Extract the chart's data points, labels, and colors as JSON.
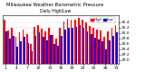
{
  "title": "Milwaukee Weather Barometric Pressure",
  "subtitle": "Daily High/Low",
  "ylim": [
    28.85,
    30.65
  ],
  "high_color": "#ff0000",
  "low_color": "#0000ee",
  "bg_color": "#ffffff",
  "days": [
    "1",
    "2",
    "3",
    "4",
    "5",
    "6",
    "7",
    "8",
    "9",
    "10",
    "11",
    "12",
    "13",
    "14",
    "15",
    "16",
    "17",
    "18",
    "19",
    "20",
    "21",
    "22",
    "23",
    "24",
    "25",
    "26",
    "27",
    "28",
    "29",
    "30",
    "31"
  ],
  "highs": [
    30.48,
    30.1,
    30.18,
    29.85,
    30.02,
    30.12,
    29.95,
    29.6,
    30.22,
    30.3,
    30.15,
    30.05,
    30.18,
    29.92,
    29.8,
    30.2,
    30.42,
    30.52,
    30.48,
    30.5,
    30.55,
    30.5,
    30.38,
    30.25,
    30.2,
    30.12,
    30.08,
    29.85,
    30.05,
    30.2,
    30.28
  ],
  "lows": [
    30.05,
    29.8,
    29.88,
    29.48,
    29.68,
    29.85,
    29.62,
    29.32,
    29.9,
    30.02,
    29.85,
    29.72,
    29.92,
    29.6,
    29.52,
    29.9,
    30.12,
    30.2,
    30.2,
    30.22,
    30.28,
    30.2,
    30.05,
    29.95,
    29.82,
    29.75,
    29.68,
    29.4,
    29.72,
    29.88,
    30.02
  ],
  "yticks": [
    29.0,
    29.2,
    29.4,
    29.6,
    29.8,
    30.0,
    30.2,
    30.4
  ],
  "legend_high": "High",
  "legend_low": "Low",
  "tick_fontsize": 3.2,
  "title_fontsize": 3.8,
  "legend_fontsize": 2.8
}
